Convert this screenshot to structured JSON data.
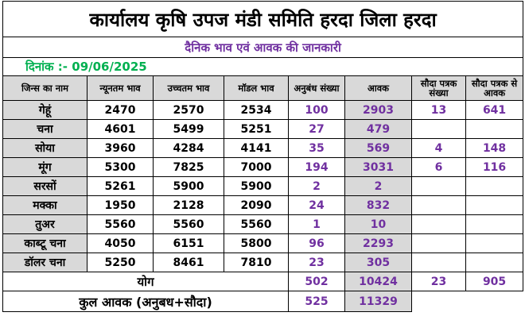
{
  "title": "कार्यालय कृषि उपज मंडी समिति हरदा जिला हरदा",
  "subtitle": "दैनिक भाव एवं आवक की जानकारी",
  "date_label": "दिनांक :-",
  "date_value": "09/06/2025",
  "columns": {
    "name": "जिन्स का नाम",
    "min": "न्यूनतम भाव",
    "max": "उच्चतम भाव",
    "modal": "मॉडल भाव",
    "anubandh": "अनुबंध संख्या",
    "aawak": "आवक",
    "sauda_sankhya": "सौदा पत्रक संख्या",
    "sauda_aawak": "सौदा पत्रक से आवक"
  },
  "rows": [
    {
      "name": "गेहूं",
      "min": "2470",
      "max": "2570",
      "modal": "2534",
      "anubandh": "100",
      "aawak": "2903",
      "sauda_sankhya": "13",
      "sauda_aawak": "641"
    },
    {
      "name": "चना",
      "min": "4601",
      "max": "5499",
      "modal": "5251",
      "anubandh": "27",
      "aawak": "479",
      "sauda_sankhya": "",
      "sauda_aawak": ""
    },
    {
      "name": "सोया",
      "min": "3960",
      "max": "4284",
      "modal": "4141",
      "anubandh": "35",
      "aawak": "569",
      "sauda_sankhya": "4",
      "sauda_aawak": "148"
    },
    {
      "name": "मूंग",
      "min": "5300",
      "max": "7825",
      "modal": "7000",
      "anubandh": "194",
      "aawak": "3031",
      "sauda_sankhya": "6",
      "sauda_aawak": "116"
    },
    {
      "name": "सरसों",
      "min": "5261",
      "max": "5900",
      "modal": "5900",
      "anubandh": "2",
      "aawak": "2",
      "sauda_sankhya": "",
      "sauda_aawak": ""
    },
    {
      "name": "मक्का",
      "min": "1950",
      "max": "2128",
      "modal": "2090",
      "anubandh": "24",
      "aawak": "832",
      "sauda_sankhya": "",
      "sauda_aawak": ""
    },
    {
      "name": "तुअर",
      "min": "5560",
      "max": "5560",
      "modal": "5560",
      "anubandh": "1",
      "aawak": "10",
      "sauda_sankhya": "",
      "sauda_aawak": ""
    },
    {
      "name": "काब्टू चना",
      "min": "4050",
      "max": "6151",
      "modal": "5800",
      "anubandh": "96",
      "aawak": "2293",
      "sauda_sankhya": "",
      "sauda_aawak": ""
    },
    {
      "name": "डॉलर चना",
      "min": "5250",
      "max": "8461",
      "modal": "7810",
      "anubandh": "23",
      "aawak": "305",
      "sauda_sankhya": "",
      "sauda_aawak": ""
    }
  ],
  "total": {
    "label": "योग",
    "anubandh": "502",
    "aawak": "10424",
    "sauda_sankhya": "23",
    "sauda_aawak": "905"
  },
  "grand": {
    "label": "कुल आवक (अनुबध+सौदा)",
    "anubandh": "525",
    "aawak": "11329"
  }
}
